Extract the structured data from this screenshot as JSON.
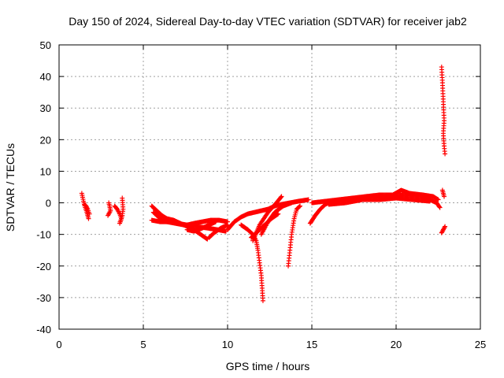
{
  "chart_data": {
    "type": "scatter",
    "title": "Day 150 of 2024, Sidereal Day-to-day VTEC variation (SDTVAR) for receiver jab2",
    "xlabel": "GPS time / hours",
    "ylabel": "SDTVAR / TECUs",
    "xlim": [
      0,
      25
    ],
    "ylim": [
      -40,
      50
    ],
    "xticks": [
      0,
      5,
      10,
      15,
      20,
      25
    ],
    "yticks": [
      -40,
      -30,
      -20,
      -10,
      0,
      10,
      20,
      30,
      40,
      50
    ],
    "grid": true,
    "marker": "+",
    "color": "#ff0000",
    "segments": [
      [
        [
          1.35,
          3.0
        ],
        [
          1.45,
          0.5
        ],
        [
          1.55,
          -1.5
        ],
        [
          1.65,
          -3.0
        ],
        [
          1.75,
          -5.0
        ]
      ],
      [
        [
          1.5,
          -0.5
        ],
        [
          1.6,
          -1.0
        ],
        [
          1.7,
          -2.0
        ],
        [
          1.8,
          -3.5
        ]
      ],
      [
        [
          2.95,
          0.0
        ],
        [
          3.0,
          -1.0
        ],
        [
          3.05,
          -2.5
        ],
        [
          2.9,
          -4.0
        ]
      ],
      [
        [
          3.3,
          -1.0
        ],
        [
          3.45,
          -2.0
        ],
        [
          3.6,
          -3.5
        ],
        [
          3.7,
          -5.0
        ],
        [
          3.6,
          -6.5
        ],
        [
          3.75,
          -4.0
        ],
        [
          3.8,
          -2.0
        ],
        [
          3.75,
          1.5
        ]
      ],
      [
        [
          5.5,
          -1.0
        ],
        [
          5.8,
          -2.5
        ],
        [
          6.1,
          -4.0
        ],
        [
          6.4,
          -5.0
        ],
        [
          6.8,
          -5.5
        ],
        [
          7.2,
          -6.5
        ],
        [
          7.6,
          -7.5
        ],
        [
          8.0,
          -8.5
        ],
        [
          8.4,
          -10.0
        ],
        [
          8.8,
          -11.5
        ]
      ],
      [
        [
          5.6,
          -3.0
        ],
        [
          6.0,
          -5.0
        ],
        [
          6.4,
          -6.0
        ],
        [
          6.9,
          -6.5
        ],
        [
          7.4,
          -7.0
        ]
      ],
      [
        [
          5.5,
          -5.5
        ],
        [
          6.0,
          -6.0
        ],
        [
          6.5,
          -6.0
        ],
        [
          7.0,
          -6.5
        ],
        [
          7.6,
          -7.0
        ],
        [
          8.2,
          -7.5
        ],
        [
          8.8,
          -8.0
        ],
        [
          9.4,
          -8.5
        ],
        [
          9.9,
          -9.0
        ]
      ],
      [
        [
          7.6,
          -8.5
        ],
        [
          8.0,
          -9.0
        ],
        [
          8.5,
          -8.0
        ],
        [
          8.9,
          -7.0
        ],
        [
          9.3,
          -6.0
        ]
      ],
      [
        [
          7.6,
          -7.0
        ],
        [
          8.0,
          -6.5
        ],
        [
          8.5,
          -6.0
        ],
        [
          9.0,
          -5.5
        ],
        [
          9.5,
          -5.5
        ],
        [
          10.0,
          -6.0
        ]
      ],
      [
        [
          8.9,
          -11.0
        ],
        [
          9.2,
          -9.5
        ],
        [
          9.6,
          -8.0
        ],
        [
          10.0,
          -7.0
        ]
      ],
      [
        [
          10.0,
          -8.5
        ],
        [
          10.4,
          -6.0
        ],
        [
          10.8,
          -4.5
        ],
        [
          11.2,
          -3.5
        ],
        [
          11.6,
          -3.0
        ],
        [
          12.0,
          -2.5
        ],
        [
          12.4,
          -2.0
        ],
        [
          12.8,
          -1.0
        ],
        [
          13.2,
          -0.5
        ],
        [
          13.7,
          0.0
        ],
        [
          14.2,
          0.5
        ],
        [
          14.8,
          1.0
        ]
      ],
      [
        [
          10.8,
          -7.0
        ],
        [
          11.2,
          -8.5
        ],
        [
          11.5,
          -10.0
        ],
        [
          11.7,
          -12.0
        ],
        [
          11.8,
          -15.0
        ],
        [
          11.9,
          -19.0
        ],
        [
          12.0,
          -23.0
        ],
        [
          12.05,
          -27.0
        ],
        [
          12.1,
          -31.0
        ]
      ],
      [
        [
          11.5,
          -12.0
        ],
        [
          11.9,
          -7.0
        ],
        [
          12.4,
          -3.0
        ],
        [
          12.9,
          0.0
        ],
        [
          13.2,
          2.0
        ]
      ],
      [
        [
          12.0,
          -10.0
        ],
        [
          12.4,
          -6.0
        ],
        [
          12.8,
          -3.0
        ],
        [
          13.3,
          -1.0
        ],
        [
          13.8,
          0.0
        ]
      ],
      [
        [
          11.4,
          -11.0
        ],
        [
          11.8,
          -9.0
        ],
        [
          12.2,
          -7.0
        ],
        [
          12.6,
          -5.0
        ],
        [
          13.0,
          -3.5
        ]
      ],
      [
        [
          13.6,
          -20.0
        ],
        [
          13.7,
          -15.0
        ],
        [
          13.8,
          -10.0
        ],
        [
          13.95,
          -5.0
        ],
        [
          14.1,
          -2.0
        ],
        [
          14.3,
          -1.0
        ]
      ],
      [
        [
          14.9,
          -6.5
        ],
        [
          15.2,
          -4.0
        ],
        [
          15.5,
          -2.0
        ],
        [
          15.8,
          -0.5
        ],
        [
          16.2,
          0.5
        ],
        [
          16.7,
          1.0
        ],
        [
          17.5,
          1.5
        ],
        [
          18.5,
          2.0
        ],
        [
          19.5,
          2.0
        ],
        [
          20.5,
          2.5
        ],
        [
          21.5,
          2.0
        ],
        [
          22.0,
          1.0
        ],
        [
          22.4,
          0.0
        ],
        [
          22.6,
          -1.5
        ]
      ],
      [
        [
          15.0,
          0.0
        ],
        [
          15.8,
          0.5
        ],
        [
          16.6,
          1.0
        ],
        [
          17.4,
          1.5
        ],
        [
          18.2,
          2.0
        ],
        [
          19.0,
          2.5
        ],
        [
          19.8,
          2.5
        ],
        [
          20.3,
          4.0
        ],
        [
          20.8,
          3.0
        ],
        [
          21.6,
          2.5
        ],
        [
          22.2,
          2.0
        ],
        [
          22.5,
          1.0
        ]
      ],
      [
        [
          16.0,
          -0.5
        ],
        [
          17.0,
          0.0
        ],
        [
          18.0,
          1.0
        ],
        [
          19.0,
          1.0
        ],
        [
          20.0,
          1.5
        ],
        [
          21.0,
          1.0
        ],
        [
          22.0,
          0.5
        ]
      ],
      [
        [
          22.7,
          43.0
        ],
        [
          22.75,
          38.0
        ],
        [
          22.8,
          32.0
        ],
        [
          22.85,
          26.0
        ],
        [
          22.8,
          22.0
        ],
        [
          22.85,
          18.0
        ],
        [
          22.9,
          15.5
        ]
      ],
      [
        [
          22.75,
          4.0
        ],
        [
          22.8,
          3.0
        ],
        [
          22.85,
          2.0
        ]
      ],
      [
        [
          22.7,
          -9.5
        ],
        [
          22.8,
          -8.5
        ],
        [
          22.9,
          -7.5
        ]
      ]
    ]
  }
}
